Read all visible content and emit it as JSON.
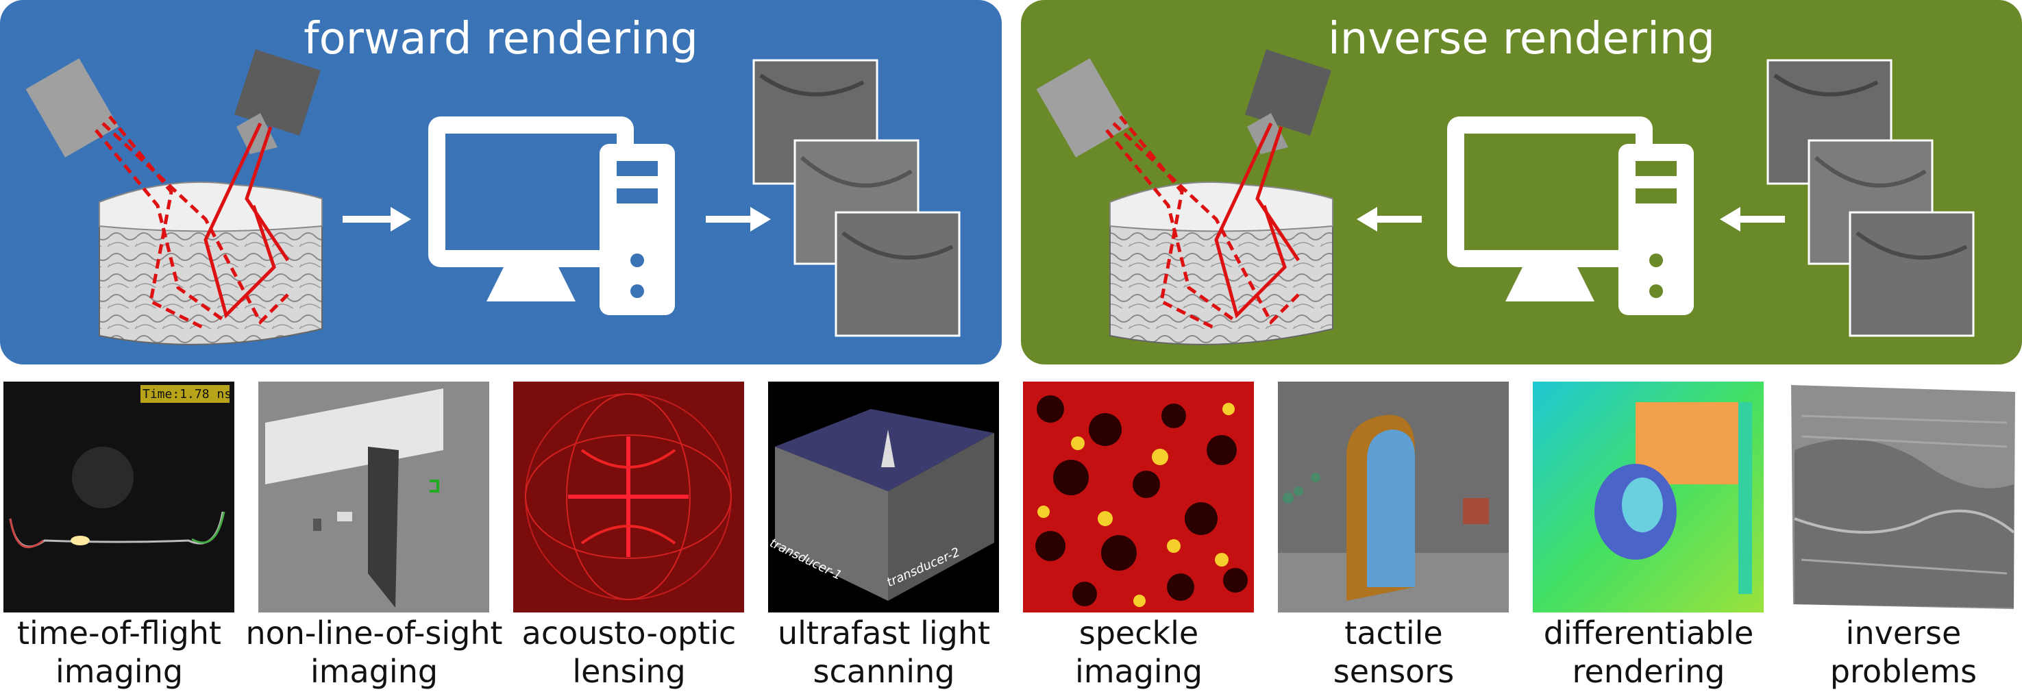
{
  "panels": {
    "forward": {
      "title": "forward rendering",
      "color": "#3a74b7"
    },
    "inverse": {
      "title": "inverse rendering",
      "color": "#6a8a2a"
    }
  },
  "tiles": [
    {
      "line1": "time-of-flight",
      "line2": "imaging",
      "overlay_text": "Time:1.78 ns"
    },
    {
      "line1": "non-line-of-sight",
      "line2": "imaging"
    },
    {
      "line1": "acousto-optic",
      "line2": "lensing"
    },
    {
      "line1": "ultrafast light",
      "line2": "scanning",
      "overlay_text": "transducer-1",
      "overlay_text_2": "transducer-2"
    },
    {
      "line1": "speckle",
      "line2": "imaging"
    },
    {
      "line1": "tactile",
      "line2": "sensors"
    },
    {
      "line1": "differentiable",
      "line2": "rendering"
    },
    {
      "line1": "inverse",
      "line2": "problems"
    }
  ],
  "icons": [
    "light-source-icon",
    "camera-icon",
    "tissue-block-icon",
    "arrow-icon",
    "computer-icon",
    "image-stack-icon"
  ]
}
